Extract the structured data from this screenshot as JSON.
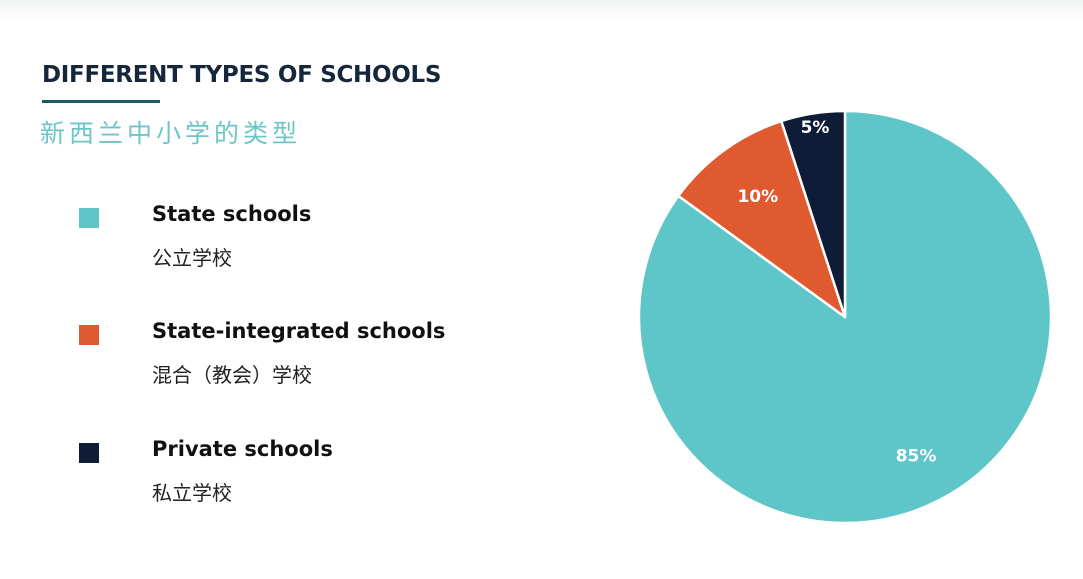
{
  "header": {
    "title": "DIFFERENT TYPES OF SCHOOLS",
    "subtitle": "新西兰中小学的类型"
  },
  "legend": [
    {
      "label": "State schools",
      "sublabel": "公立学校",
      "color": "#5ec6c8"
    },
    {
      "label": "State-integrated schools",
      "sublabel": "混合（教会）学校",
      "color": "#e05a30"
    },
    {
      "label": "Private schools",
      "sublabel": "私立学校",
      "color": "#0e1c38"
    }
  ],
  "chart_data": {
    "type": "pie",
    "title": "DIFFERENT TYPES OF SCHOOLS",
    "slices": [
      {
        "name": "State schools",
        "value": 85,
        "label": "85%",
        "color": "#5ec6c8"
      },
      {
        "name": "State-integrated schools",
        "value": 10,
        "label": "10%",
        "color": "#e05a30"
      },
      {
        "name": "Private schools",
        "value": 5,
        "label": "5%",
        "color": "#0e1c38"
      }
    ],
    "start": "12 o'clock",
    "direction": "clockwise",
    "legend_position": "left"
  }
}
